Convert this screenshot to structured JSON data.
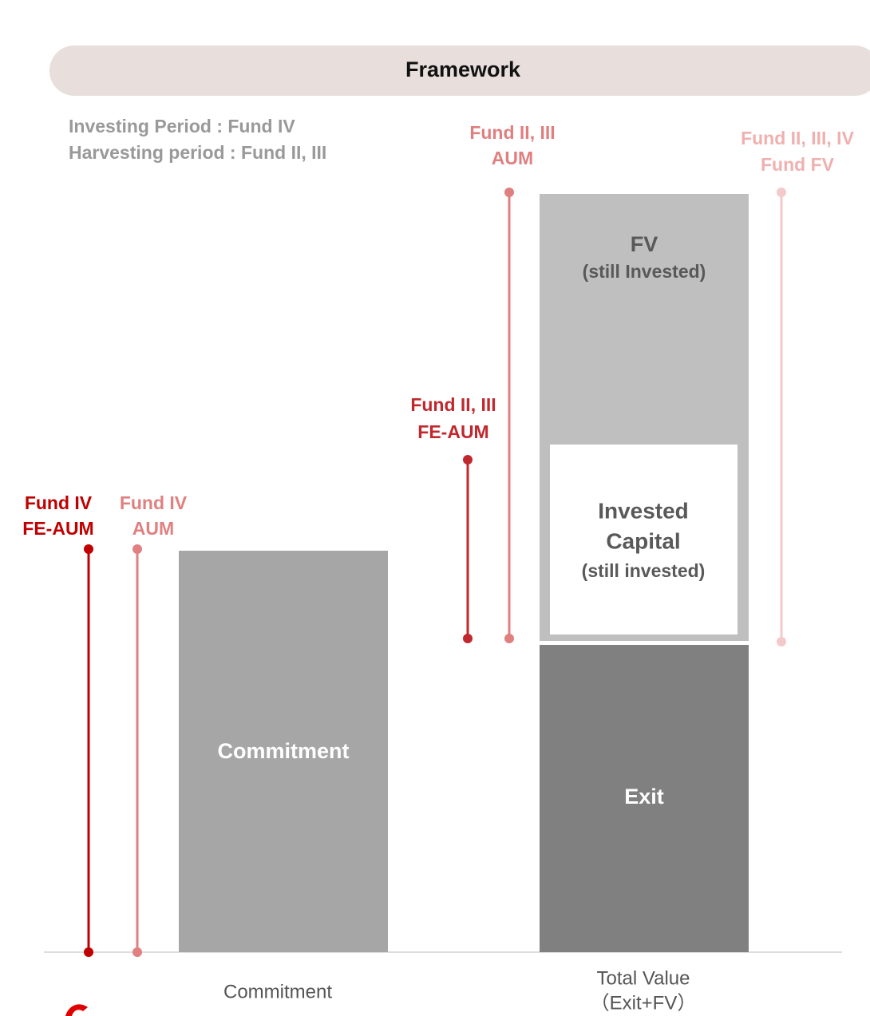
{
  "header": {
    "title": "Framework"
  },
  "notes": [
    "Investing Period : Fund IV",
    "Harvesting period : Fund II, III"
  ],
  "markers": [
    {
      "lines": [
        "Fund IV",
        "FE-AUM"
      ]
    },
    {
      "lines": [
        "Fund IV",
        "AUM"
      ]
    },
    {
      "lines": [
        "Fund II, III",
        "FE-AUM"
      ]
    },
    {
      "lines": [
        "Fund II, III",
        "AUM"
      ]
    },
    {
      "lines": [
        "Fund II, III, IV",
        "Fund FV"
      ]
    }
  ],
  "bars": {
    "commitment": "Commitment",
    "fv": [
      "FV",
      "(still Invested)"
    ],
    "invested": [
      "Invested",
      "Capital",
      "(still invested)"
    ],
    "exit": "Exit"
  },
  "axis": {
    "left": "Commitment",
    "right": [
      "Total Value",
      "（Exit+FV）"
    ]
  }
}
